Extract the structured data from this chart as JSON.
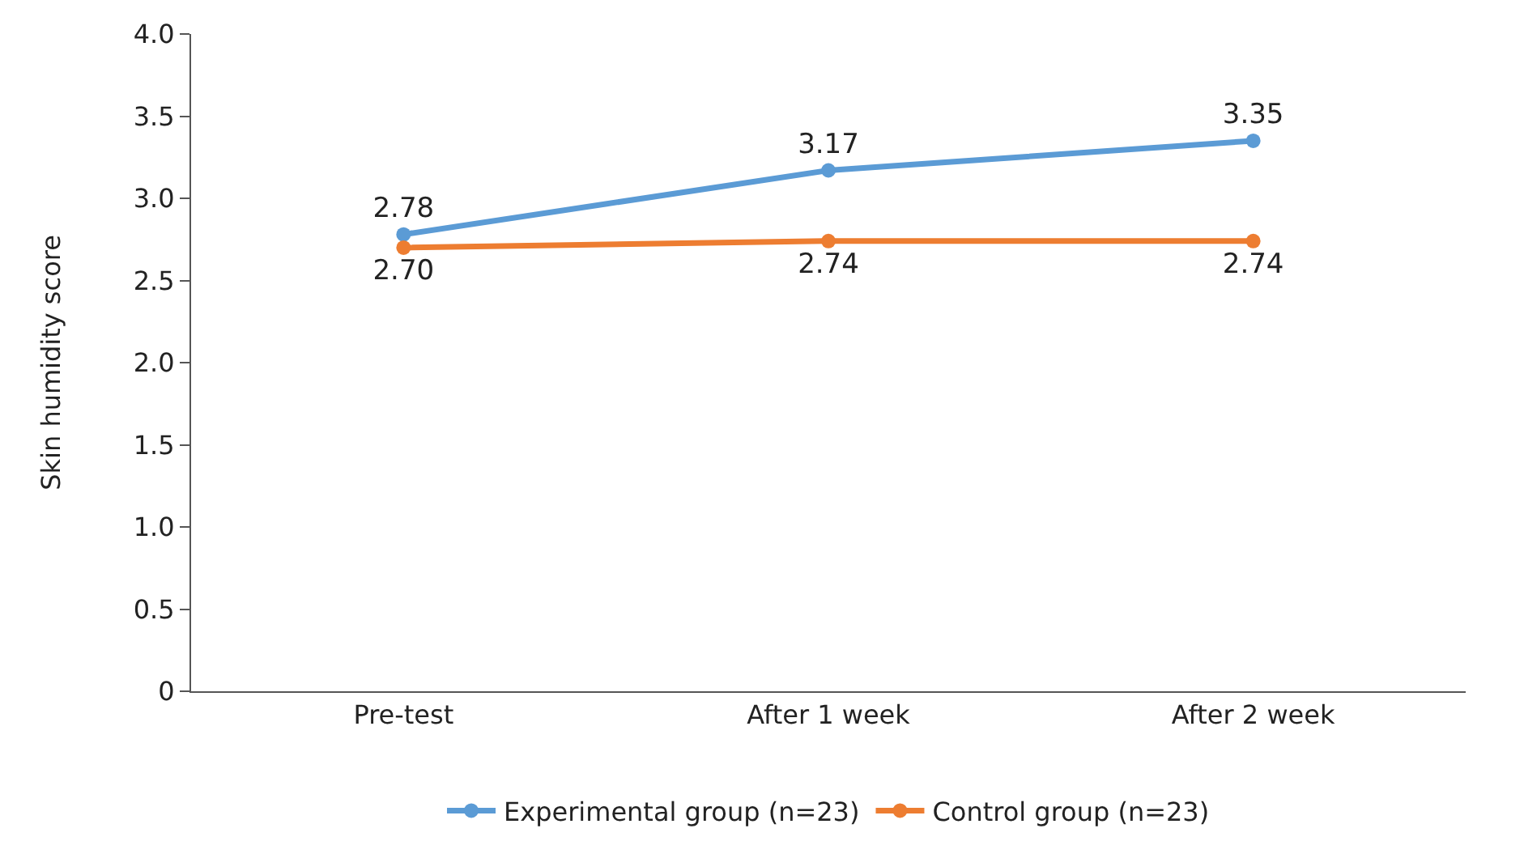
{
  "chart_data": {
    "type": "line",
    "ylabel": "Skin humidity score",
    "categories": [
      "Pre-test",
      "After 1 week",
      "After 2 week"
    ],
    "series": [
      {
        "name": "Experimental group (n=23)",
        "color": "#5b9bd5",
        "values": [
          2.78,
          3.17,
          3.35
        ],
        "value_labels": [
          "2.78",
          "3.17",
          "3.35"
        ]
      },
      {
        "name": "Control group (n=23)",
        "color": "#ed7d31",
        "values": [
          2.7,
          2.74,
          2.74
        ],
        "value_labels": [
          "2.70",
          "2.74",
          "2.74"
        ]
      }
    ],
    "ylim": [
      0,
      4
    ],
    "yticks": [
      0,
      0.5,
      {
        "value": 1,
        "label": "1.0"
      },
      1.5,
      {
        "value": 2,
        "label": "2.0"
      },
      2.5,
      {
        "value": 3,
        "label": "3.0"
      },
      3.5,
      {
        "value": 4,
        "label": "4.0"
      }
    ],
    "legend": "bottom",
    "marker": "circle",
    "line_style": "solid"
  }
}
